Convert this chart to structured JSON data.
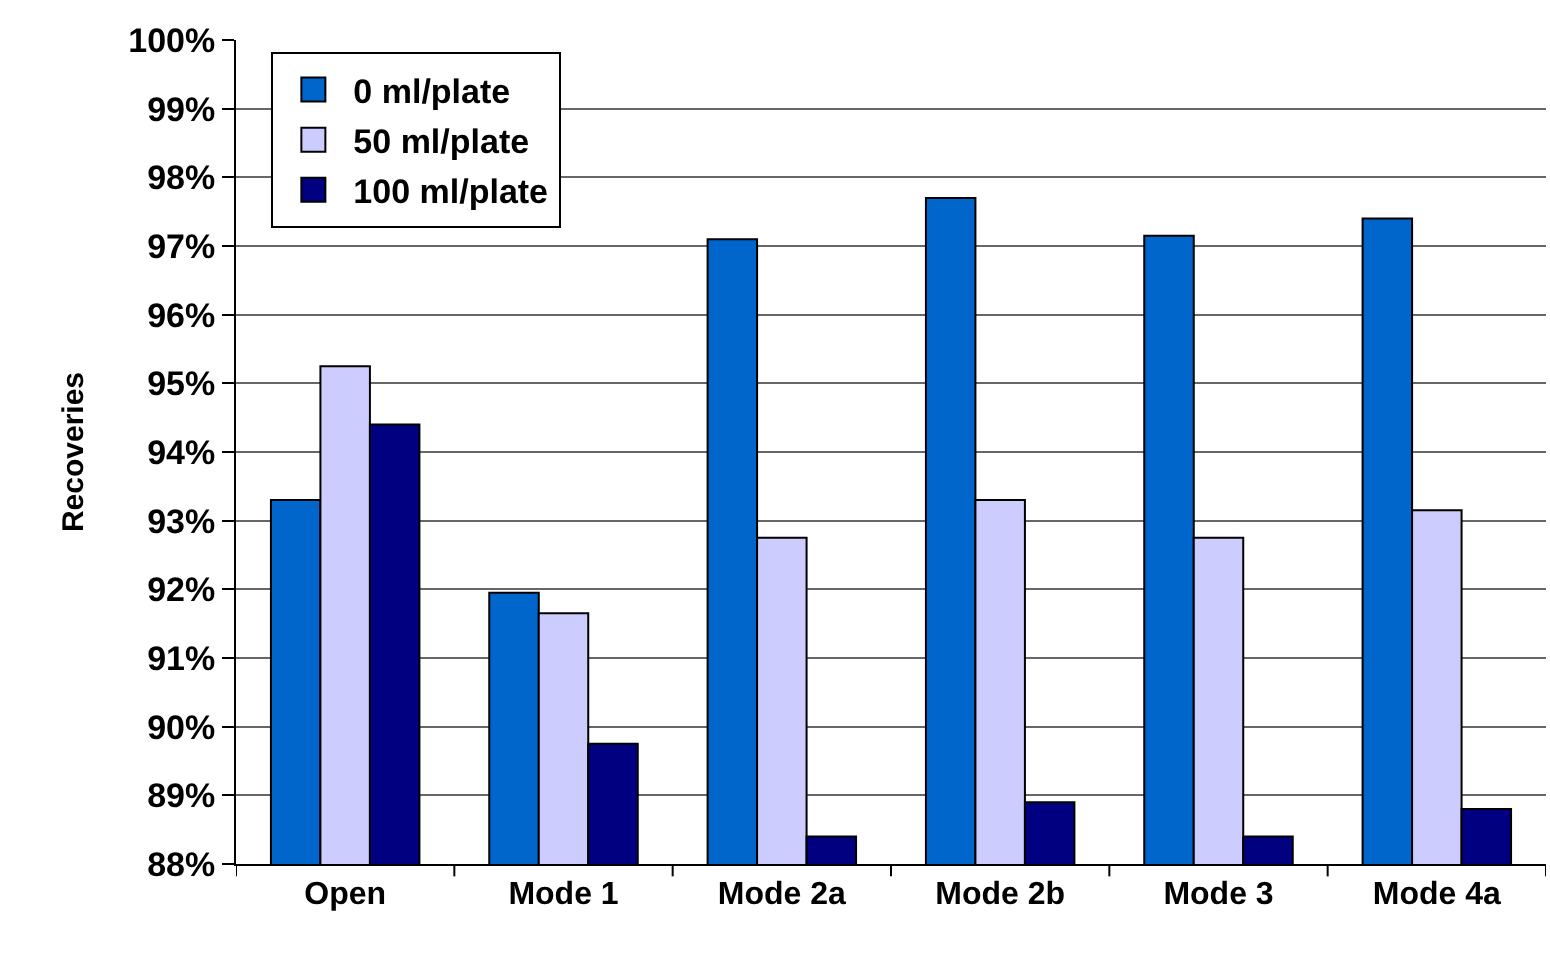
{
  "chart_data": {
    "type": "bar",
    "ylabel": "Recoveries",
    "categories": [
      "Open",
      "Mode 1",
      "Mode 2a",
      "Mode 2b",
      "Mode 3",
      "Mode 4a"
    ],
    "series": [
      {
        "name": "0 ml/plate",
        "color": "#0066cc",
        "values": [
          93.3,
          91.95,
          97.1,
          97.7,
          97.15,
          97.4
        ]
      },
      {
        "name": "50 ml/plate",
        "color": "#ccccff",
        "values": [
          95.25,
          91.65,
          92.75,
          93.3,
          92.75,
          93.15
        ]
      },
      {
        "name": "100 ml/plate",
        "color": "#000080",
        "values": [
          94.4,
          89.75,
          88.4,
          88.9,
          88.4,
          88.8
        ]
      }
    ],
    "ylim": [
      88,
      100
    ],
    "yticks": [
      {
        "value": 88,
        "label": "88%"
      },
      {
        "value": 89,
        "label": "89%"
      },
      {
        "value": 90,
        "label": "90%"
      },
      {
        "value": 91,
        "label": "91%"
      },
      {
        "value": 92,
        "label": "92%"
      },
      {
        "value": 93,
        "label": "93%"
      },
      {
        "value": 94,
        "label": "94%"
      },
      {
        "value": 95,
        "label": "95%"
      },
      {
        "value": 96,
        "label": "96%"
      },
      {
        "value": 97,
        "label": "97%"
      },
      {
        "value": 98,
        "label": "98%"
      },
      {
        "value": 99,
        "label": "99%"
      },
      {
        "value": 100,
        "label": "100%"
      }
    ],
    "grid": "y",
    "legend": "top left"
  }
}
